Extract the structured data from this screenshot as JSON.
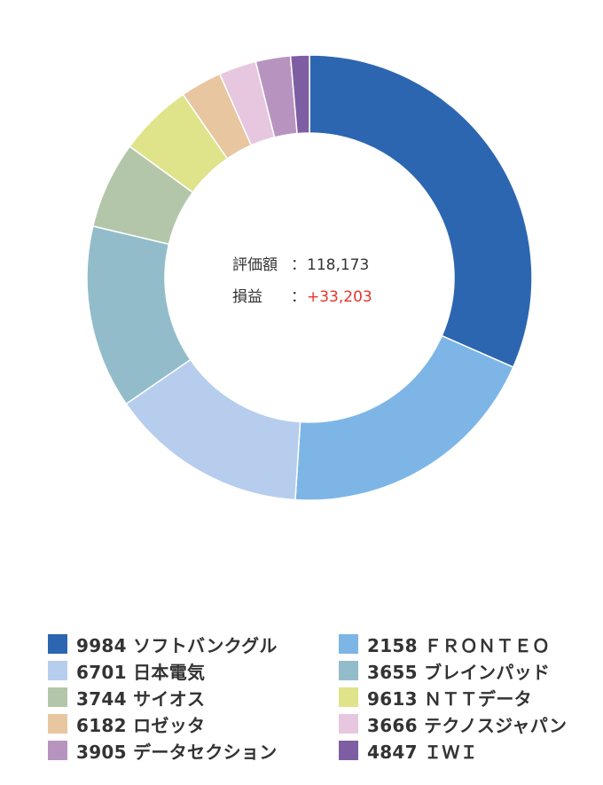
{
  "summary": {
    "valuation_label": "評価額",
    "valuation_colon": "：",
    "valuation_value": "118,173",
    "pnl_label": "損益",
    "pnl_colon": "：",
    "pnl_value": "+33,203"
  },
  "chart_data": {
    "type": "pie",
    "donut": true,
    "title": "",
    "legend_position": "bottom",
    "categories": [
      "9984 ソフトバンクグル",
      "2158 ＦＲＯＮＴＥＯ",
      "6701 日本電気",
      "3655 ブレインパッド",
      "3744 サイオス",
      "9613 ＮＴＴデータ",
      "6182 ロゼッタ",
      "3666 テクノスジャパン",
      "3905 データセクション",
      "4847 ＩＷＩ"
    ],
    "values": [
      32.5,
      20.0,
      14.8,
      13.7,
      6.5,
      5.5,
      3.1,
      2.8,
      2.6,
      1.4
    ],
    "colors": [
      "#2d66b0",
      "#7db6e6",
      "#b6cdee",
      "#93bccb",
      "#b3c6a9",
      "#dfe48a",
      "#e8c6a0",
      "#e6c7df",
      "#b794c0",
      "#7e5ea3"
    ]
  }
}
